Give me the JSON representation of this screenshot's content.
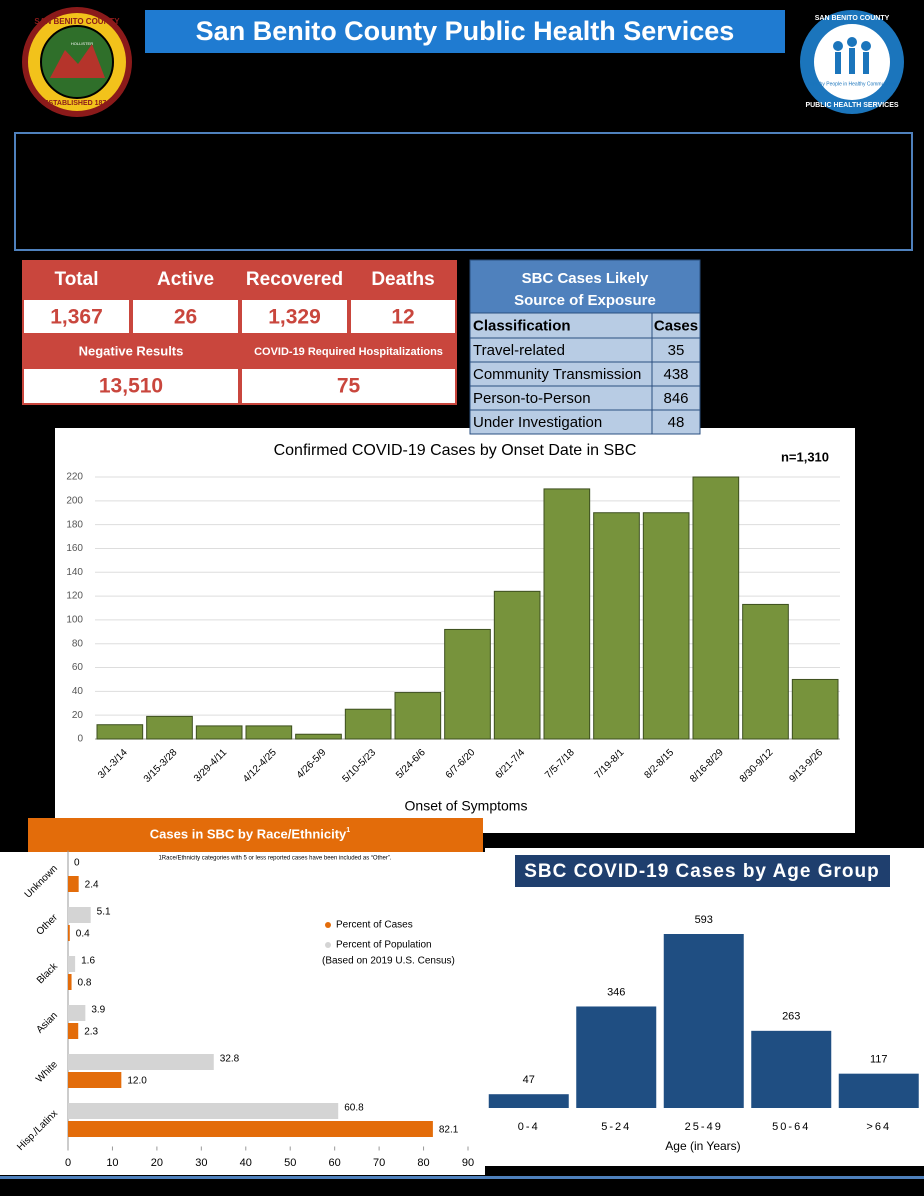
{
  "header": {
    "title": "San Benito County Public Health Services"
  },
  "logo_left": {
    "top": "SAN BENITO COUNTY",
    "middle": "HOLLISTER",
    "bottom": "ESTABLISHED 1874"
  },
  "logo_right": {
    "top": "SAN BENITO COUNTY",
    "middle": "Healthy People in Healthy Communities",
    "bottom": "PUBLIC HEALTH SERVICES"
  },
  "stats": {
    "headers": [
      "Total",
      "Active",
      "Recovered",
      "Deaths"
    ],
    "values": [
      "1,367",
      "26",
      "1,329",
      "12"
    ],
    "labels": [
      "Negative Results",
      "COVID-19 Required Hospitalizations"
    ],
    "label_values": [
      "13,510",
      "75"
    ]
  },
  "exposure_table": {
    "title_lines": [
      "SBC Cases Likely",
      "Source of Exposure"
    ],
    "columns": [
      "Classification",
      "Cases"
    ],
    "rows": [
      [
        "Travel-related",
        35
      ],
      [
        "Community Transmission",
        438
      ],
      [
        "Person-to-Person",
        846
      ],
      [
        "Under Investigation",
        48
      ]
    ]
  },
  "chart_data": [
    {
      "type": "bar",
      "title": "Confirmed COVID-19 Cases by Onset Date in SBC",
      "annotation": "n=1,310",
      "x_label": "Onset of Symptoms",
      "categories": [
        "3/1-3/14",
        "3/15-3/28",
        "3/29-4/11",
        "4/12-4/25",
        "4/26-5/9",
        "5/10-5/23",
        "5/24-6/6",
        "6/7-6/20",
        "6/21-7/4",
        "7/5-7/18",
        "7/19-8/1",
        "8/2-8/15",
        "8/16-8/29",
        "8/30-9/12",
        "9/13-9/26"
      ],
      "values": [
        12,
        19,
        11,
        11,
        4,
        25,
        39,
        92,
        124,
        210,
        190,
        190,
        220,
        113,
        50
      ],
      "color": "#77933c",
      "ylim": [
        0,
        220
      ],
      "yticks": [
        0,
        20,
        40,
        60,
        80,
        100,
        120,
        140,
        160,
        180,
        200,
        220
      ],
      "grid": true
    },
    {
      "type": "hbar",
      "title": "Cases in SBC by Race/Ethnicity",
      "title_superscript": "1",
      "footnote": "1Race/Ethnicity categories with 5 or less reported cases have been included as “Other”.",
      "legend_note": "(Based on 2019 U.S. Census)",
      "categories": [
        "Unknown",
        "Other",
        "Black",
        "Asian",
        "White",
        "Hisp./Latinx"
      ],
      "series": [
        {
          "name": "Percent of Cases",
          "color": "#e36c0a",
          "values": [
            2.4,
            0.4,
            0.8,
            2.3,
            12.0,
            82.1
          ],
          "value_labels": [
            "2.4",
            "0.4",
            "0.8",
            "2.3",
            "12.0",
            "82.1"
          ]
        },
        {
          "name": "Percent of Population",
          "color": "#d4d4d4",
          "values": [
            0,
            5.1,
            1.6,
            3.9,
            32.8,
            60.8
          ]
        }
      ],
      "xlim": [
        0,
        90
      ],
      "xticks": [
        0,
        10,
        20,
        30,
        40,
        50,
        60,
        70,
        80,
        90
      ]
    },
    {
      "type": "column",
      "title": "SBC COVID-19 Cases by Age Group",
      "x_label": "Age (in Years)",
      "categories": [
        "0-4",
        "5-24",
        "25-49",
        "50-64",
        ">64"
      ],
      "values": [
        47,
        346,
        593,
        263,
        117
      ],
      "color": "#1f4e82"
    }
  ]
}
